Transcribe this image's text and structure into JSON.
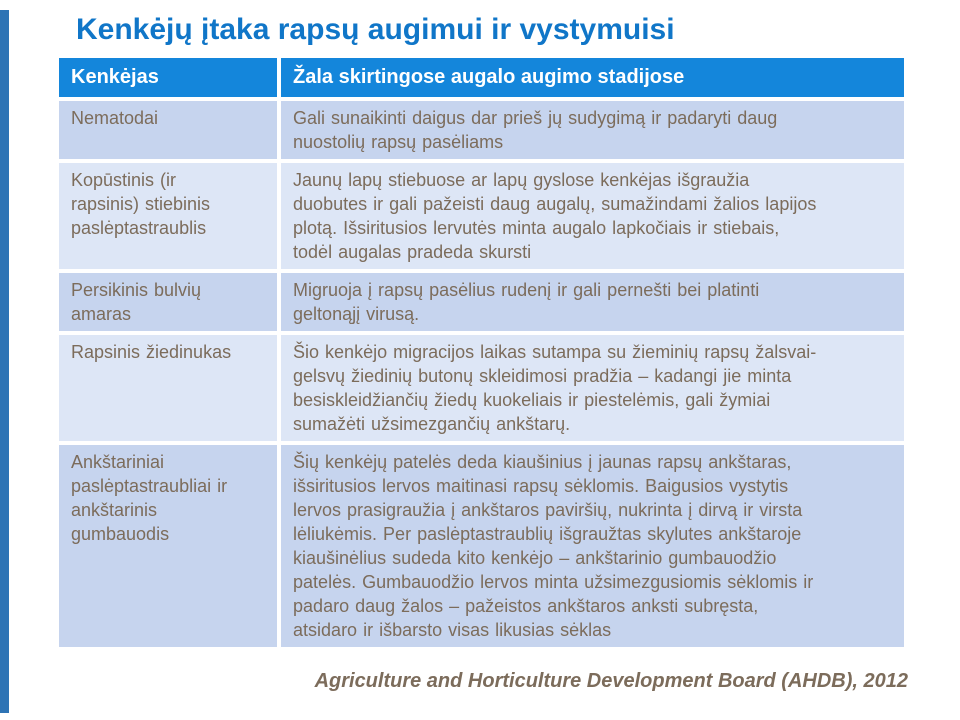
{
  "slide": {
    "title": "Kenkėjų įtaka rapsų augimui ir vystymuisi",
    "source": "Agriculture and Horticulture Development Board (AHDB), 2012"
  },
  "colors": {
    "title_blue": "#1076c8",
    "header_bg": "#1486db",
    "header_text": "#ffffff",
    "row_dark_bg": "#c6d4ee",
    "row_light_bg": "#dde6f6",
    "body_text": "#7c6c5b",
    "accent_bar": "#2e74b5"
  },
  "table": {
    "headers": [
      "Kenkėjas",
      "Žala skirtingose augalo augimo stadijose"
    ],
    "rows": [
      {
        "pest": "Nematodai",
        "damage": "Gali sunaikinti daigus dar prieš jų sudygimą ir padaryti daug\nnuostolių rapsų pasėliams"
      },
      {
        "pest": "Kopūstinis (ir\nrapsinis) stiebinis\npaslėptastraublis",
        "damage": "Jaunų lapų stiebuose ar lapų gyslose kenkėjas išgraužia\nduobutes ir gali pažeisti daug augalų, sumažindami žalios lapijos\nplotą. Išsiritusios lervutės minta augalo lapkočiais ir stiebais,\ntodėl augalas pradeda skursti"
      },
      {
        "pest": "Persikinis bulvių\namaras",
        "damage": "Migruoja į rapsų pasėlius rudenį ir gali pernešti bei platinti\ngeltonąjį virusą."
      },
      {
        "pest": "Rapsinis žiedinukas",
        "damage": "Šio kenkėjo migracijos laikas sutampa su žieminių rapsų žalsvai-\ngelsvų žiedinių butonų skleidimosi pradžia – kadangi jie minta\nbesiskleidžiančių žiedų kuokeliais ir piestelėmis, gali žymiai\nsumažėti užsimezgančių ankštarų."
      },
      {
        "pest": "Ankštariniai\npaslėptastraubliai ir\nankštarinis\ngumbauodis",
        "damage": "Šių kenkėjų patelės deda kiaušinius į jaunas rapsų ankštaras,\nišsiritusios lervos maitinasi rapsų sėklomis. Baigusios vystytis\nlervos prasigraužia į ankštaros paviršių, nukrinta į dirvą ir virsta\nlėliukėmis. Per paslėptastraublių išgraužtas skylutes ankštaroje\nkiaušinėlius sudeda kito kenkėjo – ankštarinio gumbauodžio\npatelės. Gumbauodžio lervos minta užsimezgusiomis sėklomis ir\npadaro daug žalos – pažeistos ankštaros anksti subręsta,\natsidaro ir išbarsto visas likusias sėklas"
      }
    ]
  }
}
